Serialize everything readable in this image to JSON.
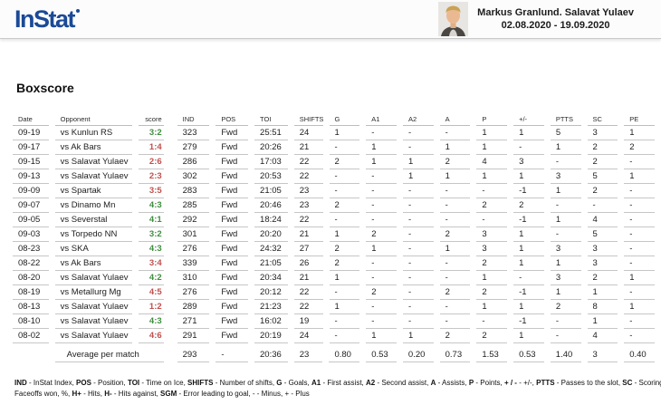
{
  "header": {
    "logo": "InStat",
    "player_name": "Markus Granlund. Salavat Yulaev",
    "date_range": "02.08.2020 - 19.09.2020"
  },
  "page_title": "Boxscore",
  "colors": {
    "logo_blue": "#1b4a97",
    "win_green": "#3e8e3e",
    "loss_red": "#c0504d"
  },
  "table": {
    "columns": [
      "Date",
      "Opponent",
      "score",
      "IND",
      "POS",
      "TOI",
      "SHIFTS",
      "G",
      "A1",
      "A2",
      "A",
      "P",
      "+/-",
      "PTTS",
      "SC",
      "PE"
    ],
    "rows": [
      {
        "date": "09-19",
        "opponent": "vs Kunlun RS",
        "score": "3:2",
        "result": "win",
        "stats": [
          "323",
          "Fwd",
          "25:51",
          "24",
          "1",
          "-",
          "-",
          "-",
          "1",
          "1",
          "5",
          "3",
          "1"
        ]
      },
      {
        "date": "09-17",
        "opponent": "vs Ak Bars",
        "score": "1:4",
        "result": "loss",
        "stats": [
          "279",
          "Fwd",
          "20:26",
          "21",
          "-",
          "1",
          "-",
          "1",
          "1",
          "-",
          "1",
          "2",
          "2"
        ]
      },
      {
        "date": "09-15",
        "opponent": "vs Salavat Yulaev",
        "score": "2:6",
        "result": "loss",
        "stats": [
          "286",
          "Fwd",
          "17:03",
          "22",
          "2",
          "1",
          "1",
          "2",
          "4",
          "3",
          "-",
          "2",
          "-"
        ]
      },
      {
        "date": "09-13",
        "opponent": "vs Salavat Yulaev",
        "score": "2:3",
        "result": "loss",
        "stats": [
          "302",
          "Fwd",
          "20:53",
          "22",
          "-",
          "-",
          "1",
          "1",
          "1",
          "1",
          "3",
          "5",
          "1"
        ]
      },
      {
        "date": "09-09",
        "opponent": "vs Spartak",
        "score": "3:5",
        "result": "loss",
        "stats": [
          "283",
          "Fwd",
          "21:05",
          "23",
          "-",
          "-",
          "-",
          "-",
          "-",
          "-1",
          "1",
          "2",
          "-"
        ]
      },
      {
        "date": "09-07",
        "opponent": "vs Dinamo Mn",
        "score": "4:3",
        "result": "win",
        "stats": [
          "285",
          "Fwd",
          "20:46",
          "23",
          "2",
          "-",
          "-",
          "-",
          "2",
          "2",
          "-",
          "-",
          "-"
        ]
      },
      {
        "date": "09-05",
        "opponent": "vs Severstal",
        "score": "4:1",
        "result": "win",
        "stats": [
          "292",
          "Fwd",
          "18:24",
          "22",
          "-",
          "-",
          "-",
          "-",
          "-",
          "-1",
          "1",
          "4",
          "-"
        ]
      },
      {
        "date": "09-03",
        "opponent": "vs Torpedo NN",
        "score": "3:2",
        "result": "win",
        "stats": [
          "301",
          "Fwd",
          "20:20",
          "21",
          "1",
          "2",
          "-",
          "2",
          "3",
          "1",
          "-",
          "5",
          "-"
        ]
      },
      {
        "date": "08-23",
        "opponent": "vs SKA",
        "score": "4:3",
        "result": "win",
        "stats": [
          "276",
          "Fwd",
          "24:32",
          "27",
          "2",
          "1",
          "-",
          "1",
          "3",
          "1",
          "3",
          "3",
          "-"
        ]
      },
      {
        "date": "08-22",
        "opponent": "vs Ak Bars",
        "score": "3:4",
        "result": "loss",
        "stats": [
          "339",
          "Fwd",
          "21:05",
          "26",
          "2",
          "-",
          "-",
          "-",
          "2",
          "1",
          "1",
          "3",
          "-"
        ]
      },
      {
        "date": "08-20",
        "opponent": "vs Salavat Yulaev",
        "score": "4:2",
        "result": "win",
        "stats": [
          "310",
          "Fwd",
          "20:34",
          "21",
          "1",
          "-",
          "-",
          "-",
          "1",
          "-",
          "3",
          "2",
          "1"
        ]
      },
      {
        "date": "08-19",
        "opponent": "vs Metallurg Mg",
        "score": "4:5",
        "result": "loss",
        "stats": [
          "276",
          "Fwd",
          "20:12",
          "22",
          "-",
          "2",
          "-",
          "2",
          "2",
          "-1",
          "1",
          "1",
          "-"
        ]
      },
      {
        "date": "08-13",
        "opponent": "vs Salavat Yulaev",
        "score": "1:2",
        "result": "loss",
        "stats": [
          "289",
          "Fwd",
          "21:23",
          "22",
          "1",
          "-",
          "-",
          "-",
          "1",
          "1",
          "2",
          "8",
          "1"
        ]
      },
      {
        "date": "08-10",
        "opponent": "vs Salavat Yulaev",
        "score": "4:3",
        "result": "win",
        "stats": [
          "271",
          "Fwd",
          "16:02",
          "19",
          "-",
          "-",
          "-",
          "-",
          "-",
          "-1",
          "-",
          "1",
          "-"
        ]
      },
      {
        "date": "08-02",
        "opponent": "vs Salavat Yulaev",
        "score": "4:6",
        "result": "loss",
        "stats": [
          "291",
          "Fwd",
          "20:19",
          "24",
          "-",
          "1",
          "1",
          "2",
          "2",
          "1",
          "-",
          "4",
          "-"
        ]
      }
    ],
    "average": {
      "label": "Average per match",
      "stats": [
        "293",
        "-",
        "20:36",
        "23",
        "0.80",
        "0.53",
        "0.20",
        "0.73",
        "1.53",
        "0.53",
        "1.40",
        "3",
        "0.40"
      ]
    }
  },
  "footer": {
    "line1": [
      {
        "t": "IND",
        "b": true
      },
      {
        "t": " - InStat Index, "
      },
      {
        "t": "POS",
        "b": true
      },
      {
        "t": " - Position, "
      },
      {
        "t": "TOI",
        "b": true
      },
      {
        "t": " - Time on Ice, "
      },
      {
        "t": "SHIFTS",
        "b": true
      },
      {
        "t": " - Number of shifts, "
      },
      {
        "t": "G",
        "b": true
      },
      {
        "t": " - Goals, "
      },
      {
        "t": "A1",
        "b": true
      },
      {
        "t": " - First assist, "
      },
      {
        "t": "A2",
        "b": true
      },
      {
        "t": " - Second assist, "
      },
      {
        "t": "A",
        "b": true
      },
      {
        "t": " - Assists, "
      },
      {
        "t": "P",
        "b": true
      },
      {
        "t": " - Points, "
      },
      {
        "t": "+ / -",
        "b": true
      },
      {
        "t": " - +/-, "
      },
      {
        "t": "PTTS",
        "b": true
      },
      {
        "t": " - Passes to the slot, "
      },
      {
        "t": "SC",
        "b": true
      },
      {
        "t": " - Scoring cha"
      }
    ],
    "line2": [
      {
        "t": "Faceoffs won, %, "
      },
      {
        "t": "H+",
        "b": true
      },
      {
        "t": " - Hits, "
      },
      {
        "t": "H-",
        "b": true
      },
      {
        "t": " - Hits against, "
      },
      {
        "t": "SGM",
        "b": true
      },
      {
        "t": " - Error leading to goal, - - Minus, + - Plus"
      }
    ]
  }
}
